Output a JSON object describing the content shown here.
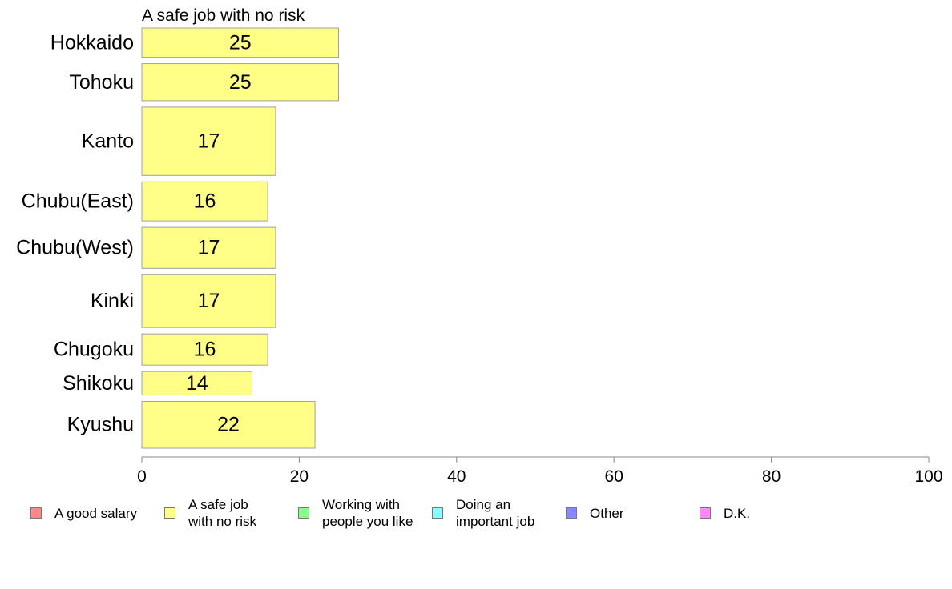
{
  "chart_data": {
    "type": "bar",
    "orientation": "horizontal",
    "title": "A safe job with no risk",
    "categories": [
      "Hokkaido",
      "Tohoku",
      "Kanto",
      "Chubu(East)",
      "Chubu(West)",
      "Kinki",
      "Chugoku",
      "Shikoku",
      "Kyushu"
    ],
    "values": [
      25,
      25,
      17,
      16,
      17,
      17,
      16,
      14,
      22
    ],
    "bar_widths": [
      0.75,
      0.95,
      1.75,
      1.0,
      1.05,
      1.35,
      0.8,
      0.6,
      1.2
    ],
    "xlim": [
      0,
      100
    ],
    "xticks": [
      0,
      20,
      40,
      60,
      80,
      100
    ],
    "bar_color": "#ffff88",
    "bar_stroke": "#a0a0a0",
    "grid": false
  },
  "legend": {
    "placement": "bottom",
    "items": [
      {
        "label": "A good salary",
        "color": "#ff8888"
      },
      {
        "label": "A safe job\nwith no risk",
        "color": "#ffff88"
      },
      {
        "label": "Working with\npeople you like",
        "color": "#88ff88"
      },
      {
        "label": "Doing an\nimportant job",
        "color": "#88ffff"
      },
      {
        "label": "Other",
        "color": "#8888ff"
      },
      {
        "label": "D.K.",
        "color": "#ff88ff"
      }
    ]
  }
}
